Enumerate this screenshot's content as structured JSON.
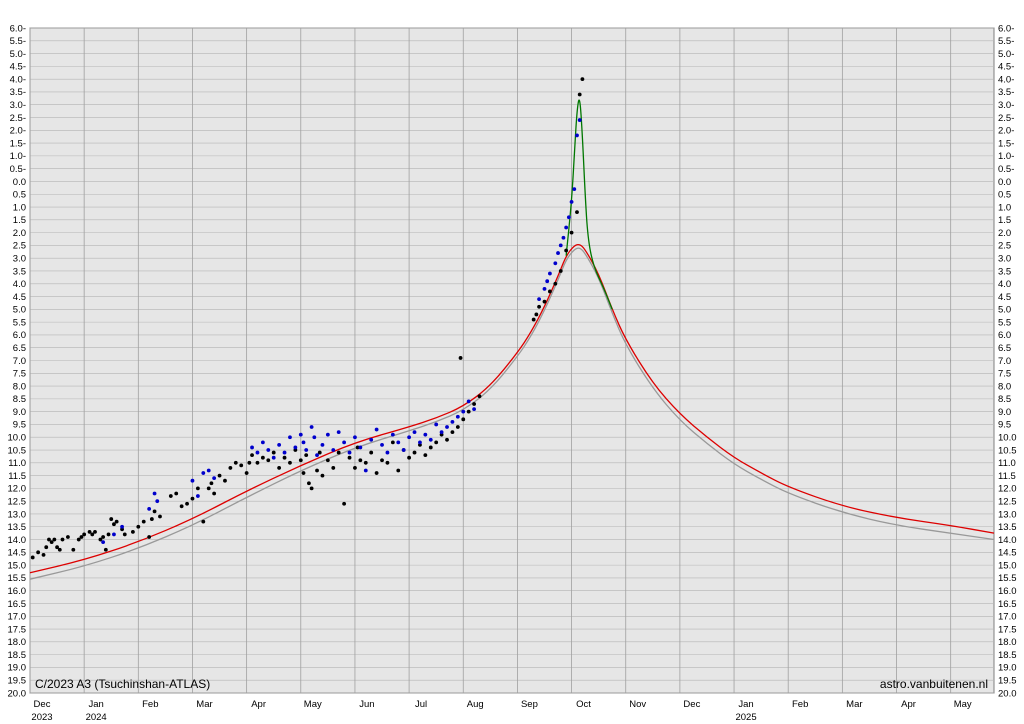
{
  "chart_data": {
    "type": "scatter",
    "title": "C/2023 A3 (Tsuchinshan-ATLAS)",
    "credit": "astro.vanbuitenen.nl",
    "y_axis": {
      "min": -6.0,
      "max": 20.0,
      "step": 0.5,
      "inverted": true,
      "labels": [
        "6.0-",
        "5.5-",
        "5.0-",
        "4.5-",
        "4.0-",
        "3.5-",
        "3.0-",
        "2.5-",
        "2.0-",
        "1.5-",
        "1.0-",
        "0.5-",
        "0.0",
        "0.5",
        "1.0",
        "1.5",
        "2.0",
        "2.5",
        "3.0",
        "3.5",
        "4.0",
        "4.5",
        "5.0",
        "5.5",
        "6.0",
        "6.5",
        "7.0",
        "7.5",
        "8.0",
        "8.5",
        "9.0",
        "9.5",
        "10.0",
        "10.5",
        "11.0",
        "11.5",
        "12.0",
        "12.5",
        "13.0",
        "13.5",
        "14.0",
        "14.5",
        "15.0",
        "15.5",
        "16.0",
        "16.5",
        "17.0",
        "17.5",
        "18.0",
        "18.5",
        "19.0",
        "19.5",
        "20.0"
      ]
    },
    "x_axis": {
      "ticks": [
        {
          "label": "Dec",
          "year": "2023",
          "x": -1.0
        },
        {
          "label": "Jan",
          "year": "2024",
          "x": 0.0
        },
        {
          "label": "Feb",
          "x": 1.0
        },
        {
          "label": "Mar",
          "x": 2.0
        },
        {
          "label": "Apr",
          "x": 3.0
        },
        {
          "label": "May",
          "x": 4.0
        },
        {
          "label": "Jun",
          "x": 5.0
        },
        {
          "label": "Jul",
          "x": 6.0
        },
        {
          "label": "Aug",
          "x": 7.0
        },
        {
          "label": "Sep",
          "x": 8.0
        },
        {
          "label": "Oct",
          "x": 9.0
        },
        {
          "label": "Nov",
          "x": 10.0
        },
        {
          "label": "Dec",
          "x": 11.0
        },
        {
          "label": "Jan",
          "year": "2025",
          "x": 12.0
        },
        {
          "label": "Feb",
          "x": 13.0
        },
        {
          "label": "Mar",
          "x": 14.0
        },
        {
          "label": "Apr",
          "x": 15.0
        },
        {
          "label": "May",
          "x": 16.0
        }
      ],
      "min": -1.0,
      "max": 16.8
    },
    "grid": true,
    "background": "#e6e6e6",
    "series": [
      {
        "kind": "model-curve",
        "color": "#dd0000",
        "points": [
          [
            -1.0,
            15.3
          ],
          [
            0.0,
            14.8
          ],
          [
            1.0,
            14.1
          ],
          [
            2.0,
            13.2
          ],
          [
            3.0,
            12.1
          ],
          [
            4.0,
            11.1
          ],
          [
            5.0,
            10.2
          ],
          [
            6.0,
            9.6
          ],
          [
            6.5,
            9.25
          ],
          [
            7.0,
            8.8
          ],
          [
            7.5,
            8.0
          ],
          [
            8.0,
            6.7
          ],
          [
            8.25,
            5.9
          ],
          [
            8.5,
            4.9
          ],
          [
            8.75,
            3.7
          ],
          [
            8.9,
            2.9
          ],
          [
            9.05,
            2.5
          ],
          [
            9.15,
            2.45
          ],
          [
            9.25,
            2.65
          ],
          [
            9.5,
            3.6
          ],
          [
            9.75,
            5.0
          ],
          [
            10.0,
            6.2
          ],
          [
            10.5,
            7.9
          ],
          [
            11.0,
            9.1
          ],
          [
            11.5,
            10.0
          ],
          [
            12.0,
            10.8
          ],
          [
            12.5,
            11.4
          ],
          [
            13.0,
            11.95
          ],
          [
            14.0,
            12.7
          ],
          [
            15.0,
            13.15
          ],
          [
            16.0,
            13.45
          ],
          [
            16.8,
            13.75
          ]
        ]
      },
      {
        "kind": "model-curve",
        "color": "#999999",
        "points": [
          [
            -1.0,
            15.55
          ],
          [
            0.0,
            15.05
          ],
          [
            1.0,
            14.35
          ],
          [
            2.0,
            13.45
          ],
          [
            3.0,
            12.35
          ],
          [
            4.0,
            11.3
          ],
          [
            5.0,
            10.4
          ],
          [
            6.0,
            9.75
          ],
          [
            6.5,
            9.4
          ],
          [
            7.0,
            8.95
          ],
          [
            7.5,
            8.15
          ],
          [
            8.0,
            6.85
          ],
          [
            8.25,
            6.05
          ],
          [
            8.5,
            5.05
          ],
          [
            8.75,
            3.85
          ],
          [
            8.9,
            3.05
          ],
          [
            9.05,
            2.65
          ],
          [
            9.15,
            2.58
          ],
          [
            9.25,
            2.8
          ],
          [
            9.5,
            3.75
          ],
          [
            9.75,
            5.15
          ],
          [
            10.0,
            6.4
          ],
          [
            10.5,
            8.1
          ],
          [
            11.0,
            9.35
          ],
          [
            11.5,
            10.25
          ],
          [
            12.0,
            11.05
          ],
          [
            12.5,
            11.65
          ],
          [
            13.0,
            12.2
          ],
          [
            14.0,
            12.95
          ],
          [
            15.0,
            13.45
          ],
          [
            16.0,
            13.75
          ],
          [
            16.8,
            14.0
          ]
        ]
      },
      {
        "kind": "forward-scatter-curve",
        "color": "#007700",
        "points": [
          [
            8.9,
            2.9
          ],
          [
            9.0,
            0.8
          ],
          [
            9.05,
            -1.0
          ],
          [
            9.1,
            -2.8
          ],
          [
            9.15,
            -3.4
          ],
          [
            9.2,
            -1.8
          ],
          [
            9.25,
            0.5
          ],
          [
            9.3,
            2.2
          ],
          [
            9.4,
            3.3
          ],
          [
            9.6,
            4.2
          ],
          [
            9.75,
            5.0
          ]
        ]
      },
      {
        "name": "black",
        "color": "#000000",
        "points": [
          [
            -0.95,
            14.7
          ],
          [
            -0.85,
            14.5
          ],
          [
            -0.75,
            14.6
          ],
          [
            -0.7,
            14.3
          ],
          [
            -0.65,
            14.0
          ],
          [
            -0.6,
            14.1
          ],
          [
            -0.55,
            14.0
          ],
          [
            -0.5,
            14.3
          ],
          [
            -0.45,
            14.4
          ],
          [
            -0.4,
            14.0
          ],
          [
            -0.3,
            13.9
          ],
          [
            -0.2,
            14.4
          ],
          [
            -0.1,
            14.0
          ],
          [
            -0.05,
            13.9
          ],
          [
            0.0,
            13.8
          ],
          [
            0.1,
            13.7
          ],
          [
            0.15,
            13.8
          ],
          [
            0.2,
            13.7
          ],
          [
            0.3,
            14.0
          ],
          [
            0.35,
            13.9
          ],
          [
            0.4,
            14.4
          ],
          [
            0.45,
            13.8
          ],
          [
            0.5,
            13.2
          ],
          [
            0.55,
            13.4
          ],
          [
            0.6,
            13.3
          ],
          [
            0.7,
            13.6
          ],
          [
            0.75,
            13.8
          ],
          [
            0.9,
            13.7
          ],
          [
            1.0,
            13.5
          ],
          [
            1.1,
            13.3
          ],
          [
            1.2,
            13.9
          ],
          [
            1.25,
            13.2
          ],
          [
            1.3,
            12.9
          ],
          [
            1.4,
            13.1
          ],
          [
            1.6,
            12.3
          ],
          [
            1.7,
            12.2
          ],
          [
            1.8,
            12.7
          ],
          [
            1.9,
            12.6
          ],
          [
            2.0,
            12.4
          ],
          [
            2.1,
            12.0
          ],
          [
            2.2,
            13.3
          ],
          [
            2.3,
            12.0
          ],
          [
            2.35,
            11.8
          ],
          [
            2.4,
            12.2
          ],
          [
            2.5,
            11.5
          ],
          [
            2.6,
            11.7
          ],
          [
            2.7,
            11.2
          ],
          [
            2.8,
            11.0
          ],
          [
            2.9,
            11.1
          ],
          [
            3.0,
            11.4
          ],
          [
            3.05,
            11.0
          ],
          [
            3.1,
            10.7
          ],
          [
            3.2,
            11.0
          ],
          [
            3.3,
            10.8
          ],
          [
            3.4,
            10.9
          ],
          [
            3.5,
            10.6
          ],
          [
            3.6,
            11.2
          ],
          [
            3.7,
            10.8
          ],
          [
            3.8,
            11.0
          ],
          [
            3.9,
            10.5
          ],
          [
            4.0,
            10.9
          ],
          [
            4.05,
            11.4
          ],
          [
            4.1,
            10.7
          ],
          [
            4.15,
            11.8
          ],
          [
            4.2,
            12.0
          ],
          [
            4.3,
            11.3
          ],
          [
            4.35,
            10.6
          ],
          [
            4.4,
            11.5
          ],
          [
            4.5,
            10.9
          ],
          [
            4.6,
            11.2
          ],
          [
            4.7,
            10.6
          ],
          [
            4.8,
            12.6
          ],
          [
            4.9,
            10.8
          ],
          [
            5.0,
            11.2
          ],
          [
            5.05,
            10.4
          ],
          [
            5.1,
            10.9
          ],
          [
            5.2,
            11.0
          ],
          [
            5.3,
            10.6
          ],
          [
            5.4,
            11.4
          ],
          [
            5.5,
            10.9
          ],
          [
            5.6,
            11.0
          ],
          [
            5.7,
            10.2
          ],
          [
            5.8,
            11.3
          ],
          [
            5.9,
            10.5
          ],
          [
            6.0,
            10.8
          ],
          [
            6.1,
            10.6
          ],
          [
            6.2,
            10.3
          ],
          [
            6.3,
            10.7
          ],
          [
            6.4,
            10.4
          ],
          [
            6.5,
            10.2
          ],
          [
            6.6,
            9.9
          ],
          [
            6.7,
            10.1
          ],
          [
            6.8,
            9.8
          ],
          [
            6.9,
            9.6
          ],
          [
            6.95,
            6.9
          ],
          [
            7.0,
            9.3
          ],
          [
            7.1,
            9.0
          ],
          [
            7.2,
            8.7
          ],
          [
            7.3,
            8.4
          ],
          [
            8.3,
            5.4
          ],
          [
            8.35,
            5.2
          ],
          [
            8.4,
            4.9
          ],
          [
            8.5,
            4.7
          ],
          [
            8.6,
            4.3
          ],
          [
            8.7,
            4.0
          ],
          [
            8.8,
            3.5
          ],
          [
            8.9,
            2.7
          ],
          [
            9.0,
            2.0
          ],
          [
            9.1,
            1.2
          ],
          [
            9.15,
            -3.4
          ],
          [
            9.2,
            -4.0
          ]
        ]
      },
      {
        "name": "blue",
        "color": "#0000cc",
        "points": [
          [
            0.35,
            14.1
          ],
          [
            0.55,
            13.8
          ],
          [
            0.7,
            13.5
          ],
          [
            1.2,
            12.8
          ],
          [
            1.3,
            12.2
          ],
          [
            1.35,
            12.5
          ],
          [
            2.0,
            11.7
          ],
          [
            2.1,
            12.3
          ],
          [
            2.2,
            11.4
          ],
          [
            2.3,
            11.3
          ],
          [
            2.4,
            11.6
          ],
          [
            3.1,
            10.4
          ],
          [
            3.2,
            10.6
          ],
          [
            3.3,
            10.2
          ],
          [
            3.4,
            10.5
          ],
          [
            3.5,
            10.8
          ],
          [
            3.6,
            10.3
          ],
          [
            3.7,
            10.6
          ],
          [
            3.8,
            10.0
          ],
          [
            3.9,
            10.4
          ],
          [
            4.0,
            9.9
          ],
          [
            4.05,
            10.2
          ],
          [
            4.1,
            10.5
          ],
          [
            4.2,
            9.6
          ],
          [
            4.25,
            10.0
          ],
          [
            4.3,
            10.7
          ],
          [
            4.4,
            10.3
          ],
          [
            4.5,
            9.9
          ],
          [
            4.6,
            10.5
          ],
          [
            4.7,
            9.8
          ],
          [
            4.8,
            10.2
          ],
          [
            4.9,
            10.6
          ],
          [
            5.0,
            10.0
          ],
          [
            5.1,
            10.4
          ],
          [
            5.2,
            11.3
          ],
          [
            5.3,
            10.1
          ],
          [
            5.4,
            9.7
          ],
          [
            5.5,
            10.3
          ],
          [
            5.6,
            10.6
          ],
          [
            5.7,
            9.9
          ],
          [
            5.8,
            10.2
          ],
          [
            5.9,
            10.5
          ],
          [
            6.0,
            10.0
          ],
          [
            6.1,
            9.8
          ],
          [
            6.2,
            10.2
          ],
          [
            6.3,
            9.9
          ],
          [
            6.4,
            10.1
          ],
          [
            6.5,
            9.5
          ],
          [
            6.6,
            9.8
          ],
          [
            6.7,
            9.6
          ],
          [
            6.8,
            9.4
          ],
          [
            6.9,
            9.2
          ],
          [
            7.0,
            9.0
          ],
          [
            7.1,
            8.6
          ],
          [
            7.2,
            8.9
          ],
          [
            8.4,
            4.6
          ],
          [
            8.5,
            4.2
          ],
          [
            8.55,
            3.9
          ],
          [
            8.6,
            3.6
          ],
          [
            8.7,
            3.2
          ],
          [
            8.75,
            2.8
          ],
          [
            8.8,
            2.5
          ],
          [
            8.85,
            2.2
          ],
          [
            8.9,
            1.8
          ],
          [
            8.95,
            1.4
          ],
          [
            9.0,
            0.8
          ],
          [
            9.05,
            0.3
          ],
          [
            9.1,
            -1.8
          ],
          [
            9.15,
            -2.4
          ]
        ]
      }
    ]
  }
}
